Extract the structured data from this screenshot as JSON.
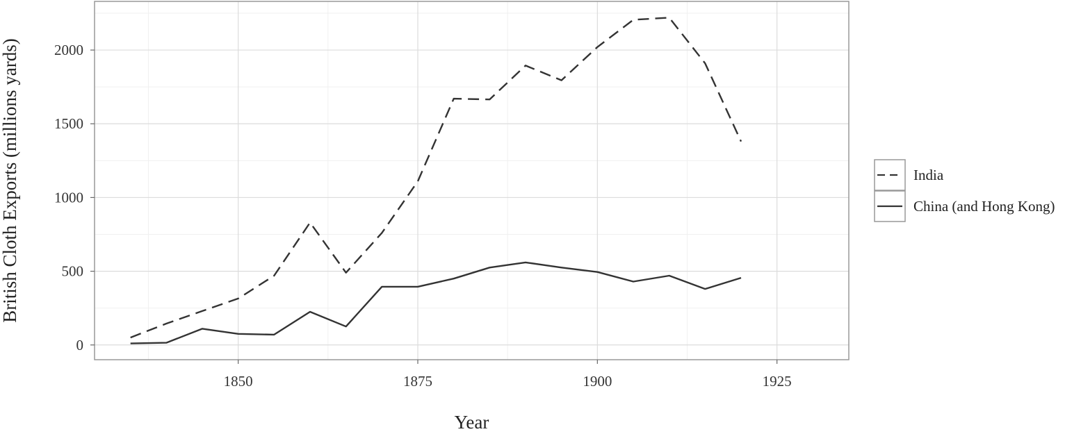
{
  "chart_data": {
    "type": "line",
    "title": "",
    "xlabel": "Year",
    "ylabel": "British Cloth Exports (millions yards)",
    "xlim": [
      1830,
      1935
    ],
    "ylim": [
      -100,
      2330
    ],
    "x_ticks": [
      1850,
      1875,
      1900,
      1925
    ],
    "x_tick_labels": [
      "1850",
      "1875",
      "1900",
      "1925"
    ],
    "y_ticks": [
      0,
      500,
      1000,
      1500,
      2000
    ],
    "y_tick_labels": [
      "0",
      "500",
      "1000",
      "1500",
      "2000"
    ],
    "grid": true,
    "legend_position": "right",
    "series": [
      {
        "name": "India",
        "line_style": "dashed",
        "color": "#333333",
        "x": [
          1835,
          1840,
          1845,
          1850,
          1855,
          1860,
          1865,
          1870,
          1875,
          1880,
          1885,
          1890,
          1895,
          1900,
          1905,
          1910,
          1915,
          1920
        ],
        "y": [
          50,
          145,
          230,
          315,
          470,
          830,
          490,
          760,
          1110,
          1670,
          1665,
          1895,
          1795,
          2020,
          2205,
          2220,
          1910,
          1380
        ]
      },
      {
        "name": "China (and Hong Kong)",
        "line_style": "solid",
        "color": "#333333",
        "x": [
          1835,
          1840,
          1845,
          1850,
          1855,
          1860,
          1865,
          1870,
          1875,
          1880,
          1885,
          1890,
          1895,
          1900,
          1905,
          1910,
          1915,
          1920
        ],
        "y": [
          10,
          15,
          110,
          75,
          70,
          225,
          125,
          395,
          395,
          450,
          525,
          560,
          525,
          495,
          430,
          470,
          380,
          455
        ]
      }
    ]
  }
}
